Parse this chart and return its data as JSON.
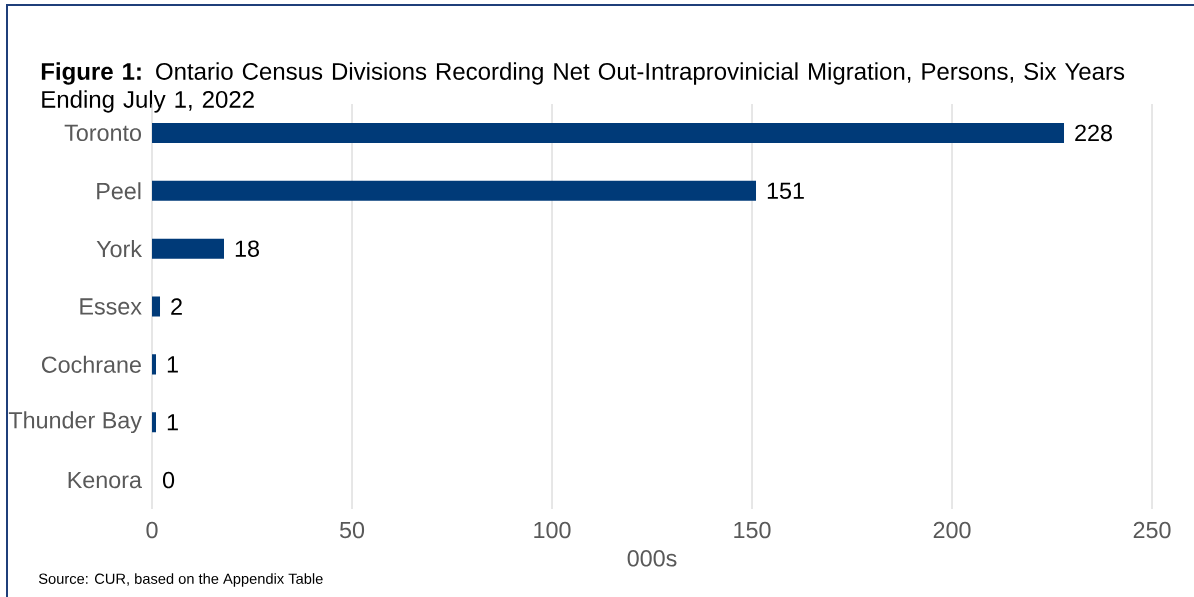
{
  "chart_data": {
    "type": "bar",
    "orientation": "horizontal",
    "title": "**Figure 1:** Ontario Census Divisions Recording Net Out-Intraprovinicial Migration, Persons, Six Years Ending July 1, 2022",
    "categories": [
      "Toronto",
      "Peel",
      "York",
      "Essex",
      "Cochrane",
      "Thunder Bay",
      "Kenora"
    ],
    "values": [
      228,
      151,
      18,
      2,
      1,
      1,
      0
    ],
    "color": "#003a78",
    "data_labels": true,
    "xlim": [
      0,
      250
    ],
    "xticks": [
      0,
      50,
      100,
      150,
      200,
      250
    ],
    "xlabel": "000s",
    "grid": "x",
    "annotations": [
      "Source: CUR, based on the Appendix Table"
    ]
  }
}
